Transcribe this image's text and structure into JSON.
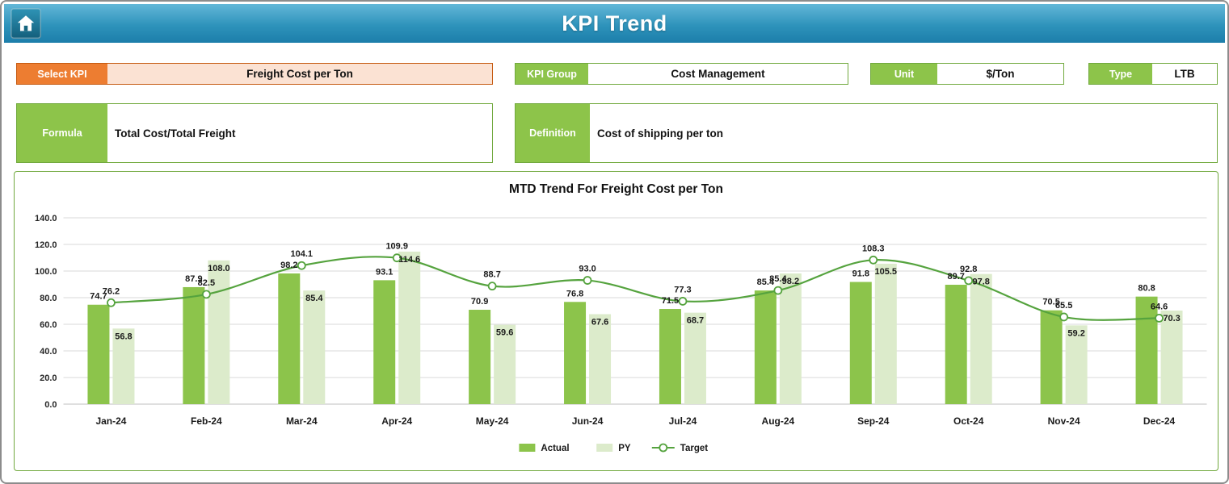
{
  "header": {
    "title": "KPI Trend"
  },
  "filters": {
    "select_kpi": {
      "label": "Select KPI",
      "value": "Freight Cost per Ton"
    },
    "kpi_group": {
      "label": "KPI Group",
      "value": "Cost Management"
    },
    "unit": {
      "label": "Unit",
      "value": "$/Ton"
    },
    "type": {
      "label": "Type",
      "value": "LTB"
    }
  },
  "details": {
    "formula": {
      "label": "Formula",
      "value": "Total Cost/Total Freight"
    },
    "definition": {
      "label": "Definition",
      "value": "Cost of shipping per ton"
    }
  },
  "chart_data": {
    "type": "bar",
    "subtype": "combo-bar-line",
    "title": "MTD Trend For Freight Cost per Ton",
    "categories": [
      "Jan-24",
      "Feb-24",
      "Mar-24",
      "Apr-24",
      "May-24",
      "Jun-24",
      "Jul-24",
      "Aug-24",
      "Sep-24",
      "Oct-24",
      "Nov-24",
      "Dec-24"
    ],
    "series": [
      {
        "name": "Actual",
        "kind": "bar",
        "color": "#8CC44B",
        "values": [
          74.7,
          87.9,
          98.2,
          93.1,
          70.9,
          76.8,
          71.5,
          85.4,
          91.8,
          89.7,
          70.5,
          80.8
        ]
      },
      {
        "name": "PY",
        "kind": "bar",
        "color": "#DCEBCB",
        "values": [
          56.8,
          108.0,
          85.4,
          114.6,
          59.6,
          67.6,
          68.7,
          98.2,
          105.5,
          97.8,
          59.2,
          70.3
        ]
      },
      {
        "name": "Target",
        "kind": "line",
        "color": "#55A33E",
        "marker_fill": "#FFFFFF",
        "values": [
          76.2,
          82.5,
          104.1,
          109.9,
          88.7,
          93.0,
          77.3,
          85.4,
          108.3,
          92.8,
          65.5,
          64.6
        ]
      }
    ],
    "ylim": [
      0,
      140
    ],
    "ytick_step": 20,
    "ytick_format": "one_decimal",
    "label_format": "one_decimal",
    "grid": true,
    "legend_position": "bottom"
  },
  "colors": {
    "header_blue": "#2E93BB",
    "accent_orange": "#ED7D31",
    "accent_orange_light": "#FBE2D3",
    "accent_green": "#8DC44A",
    "green_border": "#71A93E"
  }
}
